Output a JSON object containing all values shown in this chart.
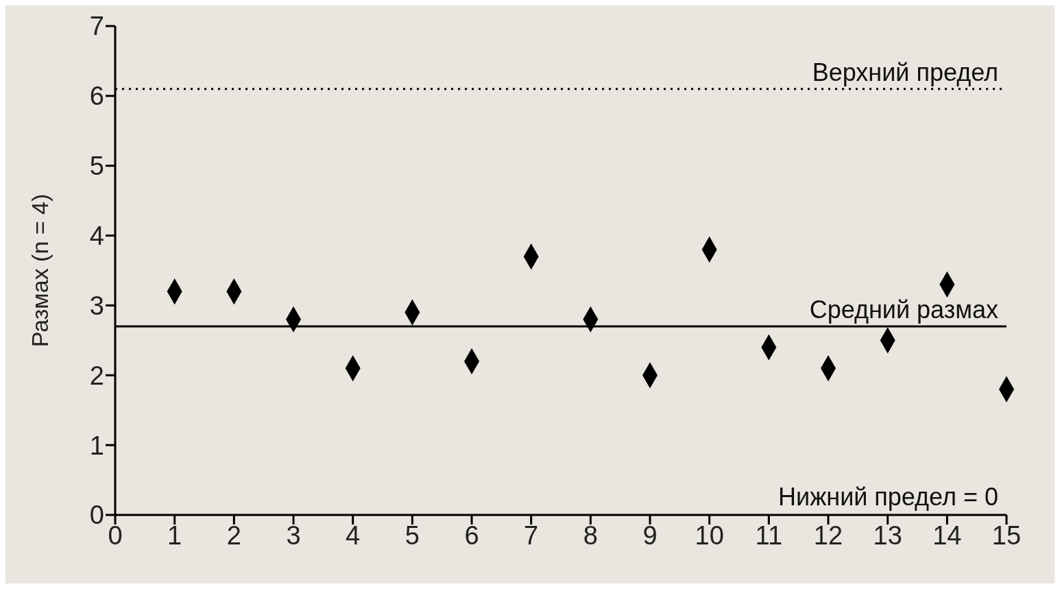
{
  "chart_data": {
    "type": "scatter",
    "ylabel": "Размах (n = 4)",
    "x": [
      1,
      2,
      3,
      4,
      5,
      6,
      7,
      8,
      9,
      10,
      11,
      12,
      13,
      14,
      15
    ],
    "series": [
      {
        "color": "#000000",
        "values": [
          3.2,
          3.2,
          2.8,
          2.1,
          2.9,
          2.2,
          3.7,
          2.8,
          2.0,
          3.8,
          2.4,
          2.1,
          2.5,
          3.3,
          1.8
        ]
      }
    ],
    "xlim": [
      0,
      15
    ],
    "xticks": [
      0,
      1,
      2,
      3,
      4,
      5,
      6,
      7,
      8,
      9,
      10,
      11,
      12,
      13,
      14,
      15
    ],
    "ylim": [
      0,
      7
    ],
    "yticks": [
      0,
      1,
      2,
      3,
      4,
      5,
      6,
      7
    ],
    "grid": false,
    "marker": "diamond",
    "annotations": [
      "Нижний предел = 0"
    ],
    "ref_lines": [
      {
        "axis": "y",
        "value": 6.1,
        "label": "Верхний предел",
        "color": "#000000",
        "line_style": "dotted"
      },
      {
        "axis": "y",
        "value": 2.7,
        "label": "Средний размах",
        "color": "#000000",
        "line_style": "solid"
      }
    ]
  }
}
